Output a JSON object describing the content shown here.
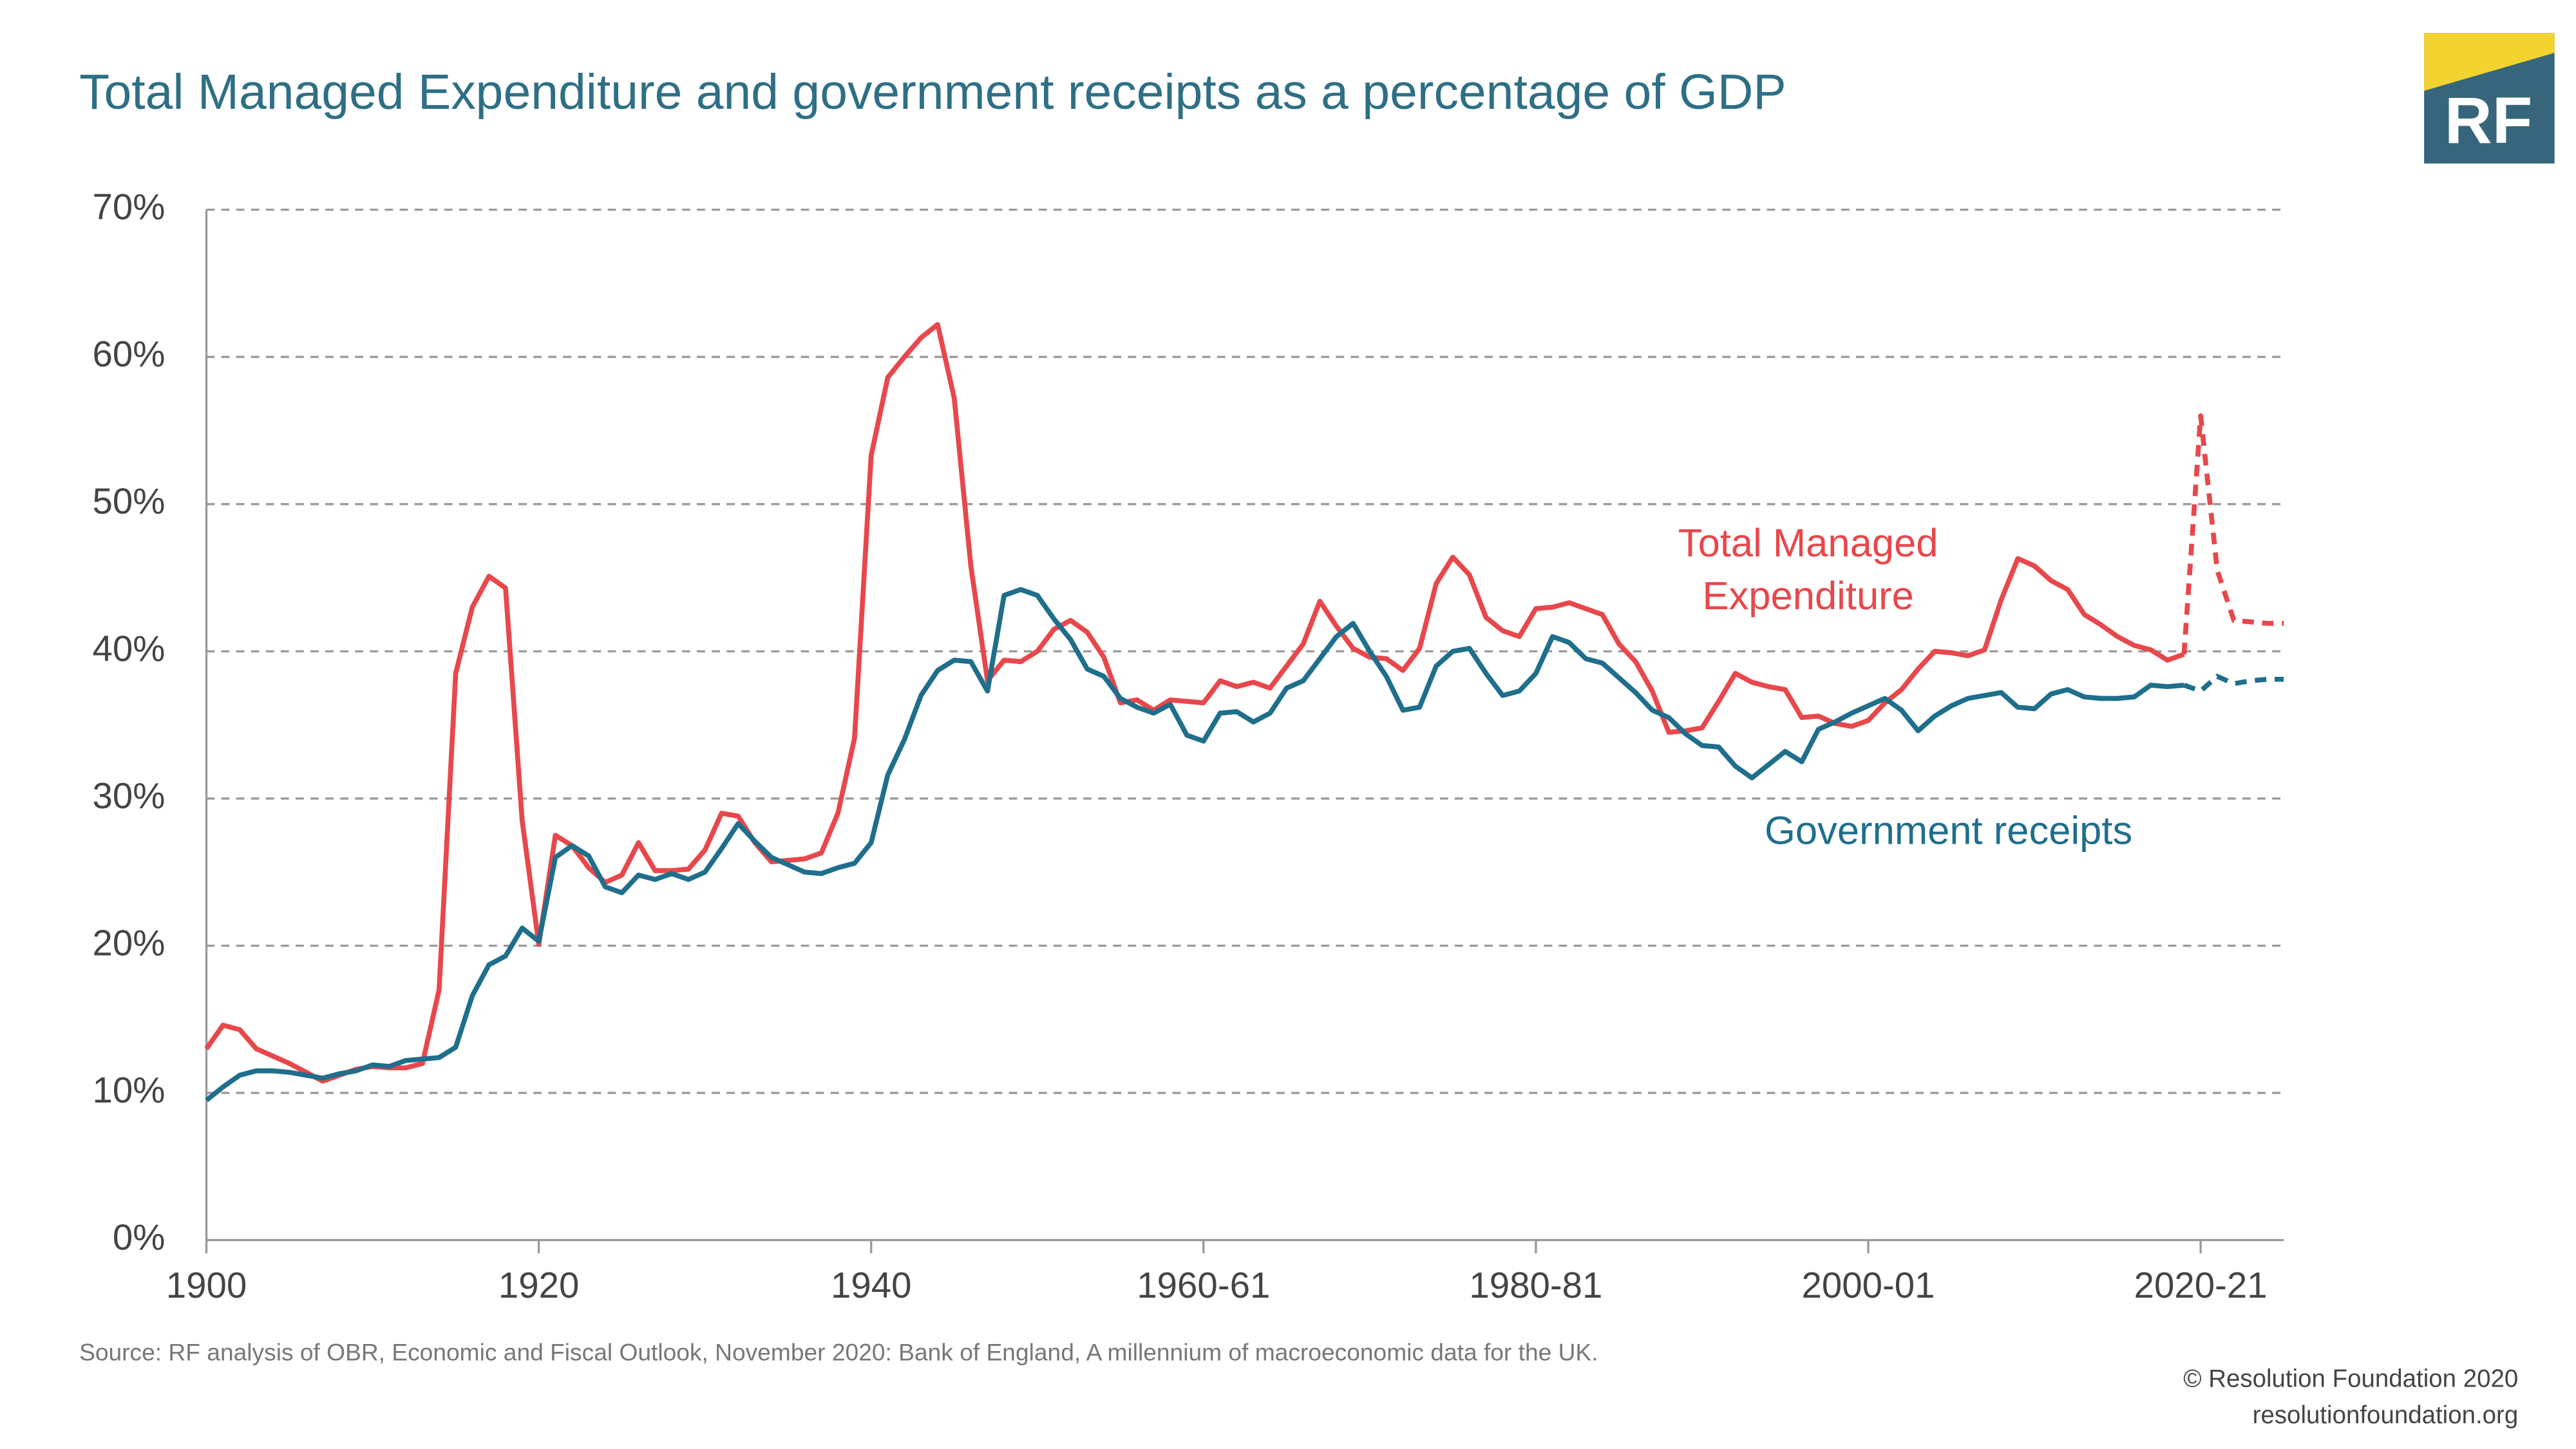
{
  "chart_data": {
    "type": "line",
    "title": "Total Managed Expenditure and government receipts as a percentage of GDP",
    "logo": "RF",
    "x": [
      1900,
      1901,
      1902,
      1903,
      1904,
      1905,
      1906,
      1907,
      1908,
      1909,
      1910,
      1911,
      1912,
      1913,
      1914,
      1915,
      1916,
      1917,
      1918,
      1919,
      1920,
      1921,
      1922,
      1923,
      1924,
      1925,
      1926,
      1927,
      1928,
      1929,
      1930,
      1931,
      1932,
      1933,
      1934,
      1935,
      1936,
      1937,
      1938,
      1939,
      1940,
      1941,
      1942,
      1943,
      1944,
      1945,
      1946,
      1947,
      1948,
      1949,
      1950,
      1951,
      1952,
      1953,
      1954,
      1955,
      1956,
      1957,
      1958,
      1959,
      1960,
      1961,
      1962,
      1963,
      1964,
      1965,
      1966,
      1967,
      1968,
      1969,
      1970,
      1971,
      1972,
      1973,
      1974,
      1975,
      1976,
      1977,
      1978,
      1979,
      1980,
      1981,
      1982,
      1983,
      1984,
      1985,
      1986,
      1987,
      1988,
      1989,
      1990,
      1991,
      1992,
      1993,
      1994,
      1995,
      1996,
      1997,
      1998,
      1999,
      2000,
      2001,
      2002,
      2003,
      2004,
      2005,
      2006,
      2007,
      2008,
      2009,
      2010,
      2011,
      2012,
      2013,
      2014,
      2015,
      2016,
      2017,
      2018,
      2019,
      2020,
      2021,
      2022,
      2023,
      2024,
      2025
    ],
    "series": [
      {
        "name": "Total Managed Expenditure",
        "color": "#e8474b",
        "dashed_from": 2019,
        "values": [
          13.0,
          14.6,
          14.3,
          13.0,
          12.5,
          12.0,
          11.4,
          10.8,
          11.2,
          11.6,
          11.8,
          11.7,
          11.7,
          12.0,
          17.0,
          38.5,
          43.0,
          45.1,
          44.3,
          28.5,
          20.1,
          27.5,
          26.8,
          25.3,
          24.3,
          24.8,
          27.0,
          25.1,
          25.1,
          25.2,
          26.5,
          29.0,
          28.8,
          27.0,
          25.7,
          25.8,
          25.9,
          26.3,
          29.0,
          34.1,
          53.3,
          58.6,
          60.0,
          61.3,
          62.2,
          57.2,
          45.8,
          38.0,
          39.4,
          39.3,
          40.0,
          41.5,
          42.1,
          41.3,
          39.6,
          36.5,
          36.7,
          36.0,
          36.7,
          36.6,
          36.5,
          38.0,
          37.6,
          37.9,
          37.5,
          39.0,
          40.5,
          43.4,
          41.7,
          40.2,
          39.6,
          39.5,
          38.7,
          40.2,
          44.6,
          46.4,
          45.2,
          42.3,
          41.4,
          41.0,
          42.9,
          43.0,
          43.3,
          42.9,
          42.5,
          40.5,
          39.3,
          37.3,
          34.5,
          34.6,
          34.8,
          36.6,
          38.5,
          37.9,
          37.6,
          37.4,
          35.5,
          35.6,
          35.1,
          34.9,
          35.3,
          36.5,
          37.4,
          38.8,
          40.0,
          39.9,
          39.7,
          40.1,
          43.5,
          46.3,
          45.8,
          44.8,
          44.2,
          42.5,
          41.8,
          41.0,
          40.4,
          40.1,
          39.4,
          39.8,
          56.0,
          45.5,
          42.1,
          42.0,
          41.9,
          41.9
        ]
      },
      {
        "name": "Government receipts",
        "color": "#1f6e8c",
        "dashed_from": 2019,
        "values": [
          9.5,
          10.4,
          11.2,
          11.5,
          11.5,
          11.4,
          11.2,
          11.0,
          11.3,
          11.5,
          11.9,
          11.8,
          12.2,
          12.3,
          12.4,
          13.1,
          16.6,
          18.7,
          19.3,
          21.2,
          20.3,
          26.0,
          26.8,
          26.1,
          24.0,
          23.6,
          24.8,
          24.5,
          24.9,
          24.5,
          25.0,
          26.6,
          28.3,
          27.1,
          26.0,
          25.5,
          25.0,
          24.9,
          25.3,
          25.6,
          27.0,
          31.6,
          34.0,
          37.0,
          38.7,
          39.4,
          39.3,
          37.3,
          43.8,
          44.2,
          43.8,
          42.2,
          40.8,
          38.8,
          38.3,
          36.8,
          36.2,
          35.8,
          36.4,
          34.3,
          33.9,
          35.8,
          35.9,
          35.2,
          35.8,
          37.5,
          38.0,
          39.5,
          41.0,
          41.9,
          40.0,
          38.3,
          36.0,
          36.2,
          39.0,
          40.0,
          40.2,
          38.5,
          37.0,
          37.3,
          38.5,
          41.0,
          40.6,
          39.5,
          39.2,
          38.2,
          37.2,
          36.0,
          35.5,
          34.4,
          33.6,
          33.5,
          32.2,
          31.4,
          32.3,
          33.2,
          32.5,
          34.7,
          35.2,
          35.8,
          36.3,
          36.8,
          36.0,
          34.6,
          35.6,
          36.3,
          36.8,
          37.0,
          37.2,
          36.2,
          36.1,
          37.1,
          37.4,
          36.9,
          36.8,
          36.8,
          36.9,
          37.7,
          37.6,
          37.7,
          37.3,
          38.3,
          37.8,
          38.0,
          38.1,
          38.1
        ]
      }
    ],
    "xlim": [
      1900,
      2025
    ],
    "xticks": [
      1900,
      1920,
      1940,
      {
        "value": 1960,
        "label": "1960-61"
      },
      {
        "value": 1980,
        "label": "1980-81"
      },
      {
        "value": 2000,
        "label": "2000-01"
      },
      {
        "value": 2020,
        "label": "2020-21"
      }
    ],
    "ylim": [
      0,
      70
    ],
    "yticks": [
      {
        "value": 0,
        "label": "0%"
      },
      {
        "value": 10,
        "label": "10%"
      },
      {
        "value": 20,
        "label": "20%"
      },
      {
        "value": 30,
        "label": "30%"
      },
      {
        "value": 40,
        "label": "40%"
      },
      {
        "value": 50,
        "label": "50%"
      },
      {
        "value": 60,
        "label": "60%"
      },
      {
        "value": 70,
        "label": "70%"
      }
    ],
    "grid": true,
    "source": "Source: RF analysis of OBR, Economic and Fiscal Outlook, November 2020: Bank of England, A millennium of macroeconomic data for the UK.",
    "credits": [
      "© Resolution Foundation 2020",
      "resolutionfoundation.org"
    ]
  }
}
